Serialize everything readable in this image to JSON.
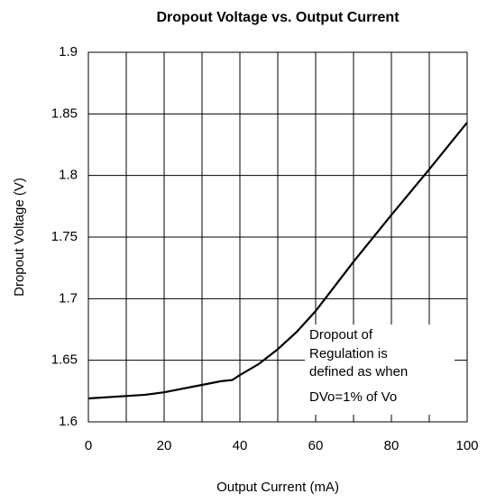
{
  "chart_data": {
    "type": "line",
    "title": "Dropout Voltage vs. Output Current",
    "x_label": "Output Current (mA)",
    "y_label": "Dropout Voltage (V)",
    "x": [
      0,
      10,
      15,
      20,
      25,
      30,
      35,
      38,
      40,
      45,
      50,
      55,
      60,
      65,
      70,
      80,
      90,
      100
    ],
    "series": [
      {
        "color": "#000000",
        "values": [
          1.619,
          1.621,
          1.622,
          1.624,
          1.627,
          1.63,
          1.633,
          1.634,
          1.638,
          1.647,
          1.659,
          1.673,
          1.69,
          1.71,
          1.73,
          1.768,
          1.805,
          1.843
        ]
      }
    ],
    "xlim": [
      0,
      100
    ],
    "xticks": [
      0,
      20,
      40,
      60,
      80,
      100
    ],
    "xminor_ticks": [
      10,
      30,
      50,
      70,
      90
    ],
    "ylim": [
      1.6,
      1.9
    ],
    "yticks": [
      1.6,
      1.65,
      1.7,
      1.75,
      1.8,
      1.85,
      1.9
    ],
    "grid": true,
    "annotation": [
      "Dropout of",
      "Regulation is",
      "defined as when",
      "DVo=1% of Vo"
    ]
  }
}
